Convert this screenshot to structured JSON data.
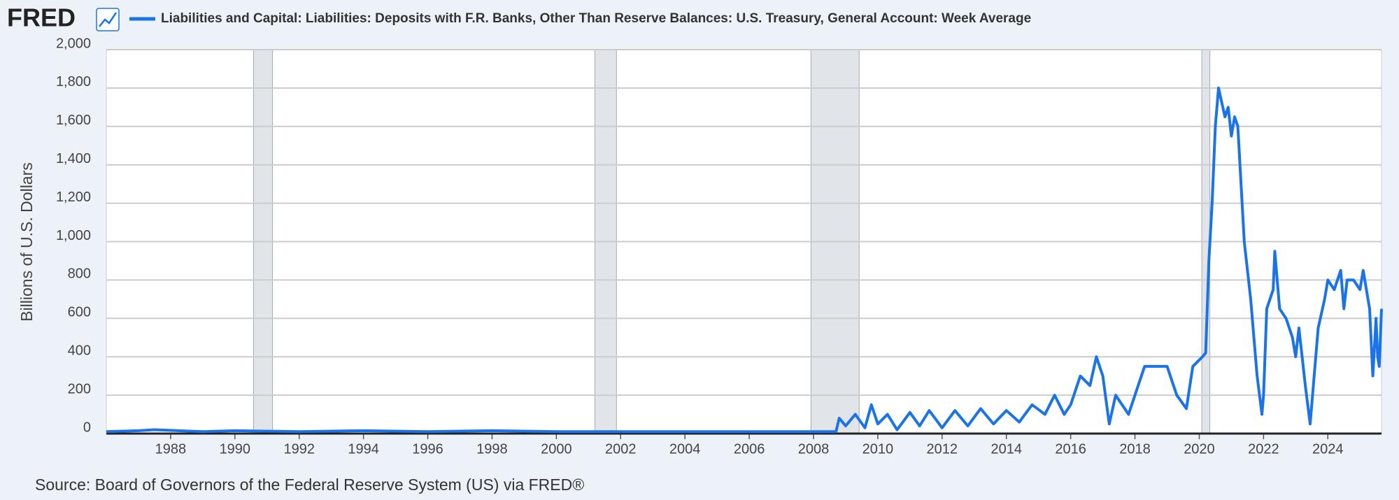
{
  "logo": "FRED",
  "chart_data": {
    "type": "line",
    "title": "Liabilities and Capital: Liabilities: Deposits with F.R. Banks, Other Than Reserve Balances: U.S. Treasury, General Account: Week Average",
    "y_label": "Billions of U.S. Dollars",
    "source": "Source: Board of Governors of the Federal Reserve System (US) via FRED®",
    "xlim": [
      1986.0,
      2025.67
    ],
    "ylim": [
      0,
      2000
    ],
    "xticks": [
      1988,
      1990,
      1992,
      1994,
      1996,
      1998,
      2000,
      2002,
      2004,
      2006,
      2008,
      2010,
      2012,
      2014,
      2016,
      2018,
      2020,
      2022,
      2024
    ],
    "yticks": [
      0,
      {
        "value": 200,
        "label": "200"
      },
      400,
      600,
      800,
      {
        "value": 1000,
        "label": "1,000"
      },
      {
        "value": 1200,
        "label": "1,200"
      },
      {
        "value": 1400,
        "label": "1,400"
      },
      {
        "value": 1600,
        "label": "1,600"
      },
      {
        "value": 1800,
        "label": "1,800"
      },
      {
        "value": 2000,
        "label": "2,000"
      }
    ],
    "grid": true,
    "recessions": [
      [
        1990.58,
        1991.17
      ],
      [
        2001.2,
        2001.87
      ],
      [
        2007.92,
        2009.42
      ],
      [
        2020.08,
        2020.33
      ]
    ],
    "series": [
      {
        "name": "Liabilities and Capital: Liabilities: Deposits with F.R. Banks, Other Than Reserve Balances: U.S. Treasury, General Account: Week Average",
        "color": "#1a73e8",
        "x": [
          1986.0,
          1987.0,
          1987.5,
          1989.0,
          1990.0,
          1992.0,
          1994.0,
          1996.0,
          1998.0,
          2000.0,
          2002.0,
          2004.0,
          2006.0,
          2007.5,
          2008.7,
          2008.8,
          2009.0,
          2009.3,
          2009.6,
          2009.8,
          2010.0,
          2010.3,
          2010.6,
          2011.0,
          2011.3,
          2011.6,
          2012.0,
          2012.4,
          2012.8,
          2013.2,
          2013.6,
          2014.0,
          2014.4,
          2014.8,
          2015.2,
          2015.5,
          2015.8,
          2016.0,
          2016.3,
          2016.6,
          2016.8,
          2017.0,
          2017.2,
          2017.4,
          2017.8,
          2018.0,
          2018.3,
          2018.8,
          2019.0,
          2019.3,
          2019.6,
          2019.8,
          2020.1,
          2020.2,
          2020.3,
          2020.4,
          2020.5,
          2020.6,
          2020.8,
          2020.9,
          2021.0,
          2021.1,
          2021.2,
          2021.4,
          2021.6,
          2021.8,
          2021.95,
          2022.0,
          2022.1,
          2022.3,
          2022.35,
          2022.5,
          2022.7,
          2022.9,
          2023.0,
          2023.1,
          2023.3,
          2023.45,
          2023.6,
          2023.7,
          2023.9,
          2024.0,
          2024.2,
          2024.4,
          2024.5,
          2024.6,
          2024.8,
          2025.0,
          2025.1,
          2025.3,
          2025.4,
          2025.5,
          2025.55,
          2025.6,
          2025.67
        ],
        "values": [
          10,
          15,
          20,
          10,
          15,
          10,
          15,
          10,
          15,
          10,
          10,
          10,
          10,
          10,
          10,
          80,
          40,
          100,
          30,
          150,
          50,
          100,
          20,
          110,
          40,
          120,
          30,
          120,
          40,
          130,
          50,
          120,
          60,
          150,
          100,
          200,
          100,
          150,
          300,
          250,
          400,
          300,
          50,
          200,
          100,
          200,
          350,
          350,
          350,
          200,
          130,
          350,
          400,
          420,
          900,
          1200,
          1600,
          1800,
          1650,
          1700,
          1550,
          1650,
          1600,
          1000,
          700,
          300,
          100,
          200,
          650,
          750,
          950,
          650,
          600,
          500,
          400,
          550,
          250,
          50,
          350,
          550,
          700,
          800,
          750,
          850,
          650,
          800,
          800,
          750,
          850,
          650,
          300,
          600,
          400,
          350,
          650
        ]
      }
    ]
  }
}
